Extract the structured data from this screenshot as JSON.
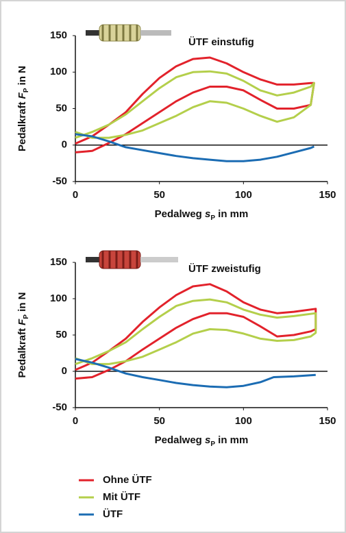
{
  "chart_data": [
    {
      "type": "line",
      "title": "ÜTF einstufig",
      "ylabel": [
        "Pedalkraft ",
        "F",
        "P",
        " in N"
      ],
      "xlabel": [
        "Pedalweg ",
        "s",
        "P",
        " in mm"
      ],
      "xlim": [
        0,
        150
      ],
      "xticks": [
        0,
        50,
        100,
        150
      ],
      "ylim": [
        -50,
        150
      ],
      "yticks": [
        -50,
        0,
        50,
        100,
        150
      ],
      "series": [
        {
          "name": "Ohne ÜTF",
          "color": "#e2222b",
          "x": [
            0,
            10,
            20,
            30,
            40,
            50,
            60,
            70,
            80,
            90,
            100,
            110,
            120,
            130,
            140,
            142,
            140,
            130,
            120,
            110,
            100,
            90,
            80,
            70,
            60,
            50,
            40,
            30,
            20,
            10,
            0
          ],
          "values": [
            -10,
            -8,
            3,
            15,
            30,
            45,
            60,
            72,
            80,
            80,
            75,
            62,
            50,
            50,
            55,
            85,
            85,
            83,
            83,
            90,
            100,
            112,
            120,
            118,
            108,
            92,
            70,
            45,
            28,
            12,
            2
          ]
        },
        {
          "name": "Mit ÜTF",
          "color": "#b4cf4b",
          "x": [
            0,
            10,
            20,
            30,
            40,
            50,
            60,
            70,
            80,
            90,
            100,
            110,
            120,
            130,
            140,
            142,
            140,
            130,
            120,
            110,
            100,
            90,
            80,
            70,
            60,
            50,
            40,
            30,
            20,
            10,
            0
          ],
          "values": [
            18,
            10,
            10,
            14,
            20,
            30,
            40,
            52,
            60,
            58,
            50,
            40,
            32,
            38,
            55,
            85,
            80,
            72,
            68,
            75,
            88,
            98,
            101,
            100,
            93,
            78,
            60,
            42,
            28,
            18,
            10
          ]
        },
        {
          "name": "ÜTF",
          "color": "#1b6cb3",
          "x": [
            0,
            10,
            20,
            30,
            40,
            50,
            60,
            70,
            80,
            90,
            100,
            110,
            120,
            130,
            140,
            142
          ],
          "values": [
            15,
            12,
            5,
            -3,
            -7,
            -11,
            -15,
            -18,
            -20,
            -22,
            -22,
            -20,
            -16,
            -10,
            -4,
            -2
          ]
        }
      ]
    },
    {
      "type": "line",
      "title": "ÜTF zweistufig",
      "ylabel": [
        "Pedalkraft ",
        "F",
        "P",
        " in N"
      ],
      "xlabel": [
        "Pedalweg ",
        "s",
        "P",
        " in mm"
      ],
      "xlim": [
        0,
        150
      ],
      "xticks": [
        0,
        50,
        100,
        150
      ],
      "ylim": [
        -50,
        150
      ],
      "yticks": [
        -50,
        0,
        50,
        100,
        150
      ],
      "series": [
        {
          "name": "Ohne ÜTF",
          "color": "#e2222b",
          "x": [
            0,
            10,
            20,
            30,
            40,
            50,
            60,
            70,
            80,
            90,
            100,
            110,
            120,
            130,
            140,
            143,
            143,
            130,
            120,
            110,
            100,
            90,
            80,
            70,
            60,
            50,
            40,
            30,
            20,
            10,
            0
          ],
          "values": [
            -10,
            -8,
            2,
            14,
            30,
            45,
            60,
            72,
            80,
            80,
            75,
            62,
            48,
            50,
            55,
            58,
            86,
            82,
            80,
            85,
            95,
            110,
            120,
            117,
            105,
            88,
            68,
            45,
            28,
            12,
            2
          ]
        },
        {
          "name": "Mit ÜTF",
          "color": "#b4cf4b",
          "x": [
            0,
            10,
            20,
            30,
            40,
            50,
            60,
            70,
            80,
            90,
            100,
            110,
            120,
            130,
            140,
            143,
            143,
            130,
            120,
            110,
            100,
            90,
            80,
            70,
            60,
            50,
            40,
            30,
            20,
            10,
            0
          ],
          "values": [
            18,
            10,
            10,
            14,
            20,
            30,
            40,
            52,
            58,
            57,
            52,
            45,
            42,
            43,
            48,
            53,
            80,
            76,
            74,
            78,
            85,
            95,
            99,
            97,
            90,
            75,
            58,
            40,
            28,
            18,
            10
          ]
        },
        {
          "name": "ÜTF",
          "color": "#1b6cb3",
          "x": [
            0,
            10,
            20,
            30,
            40,
            50,
            60,
            70,
            80,
            90,
            100,
            110,
            118,
            130,
            143
          ],
          "values": [
            17,
            12,
            5,
            -3,
            -8,
            -12,
            -16,
            -19,
            -21,
            -22,
            -20,
            -15,
            -8,
            -7,
            -5
          ]
        }
      ]
    }
  ]
}
